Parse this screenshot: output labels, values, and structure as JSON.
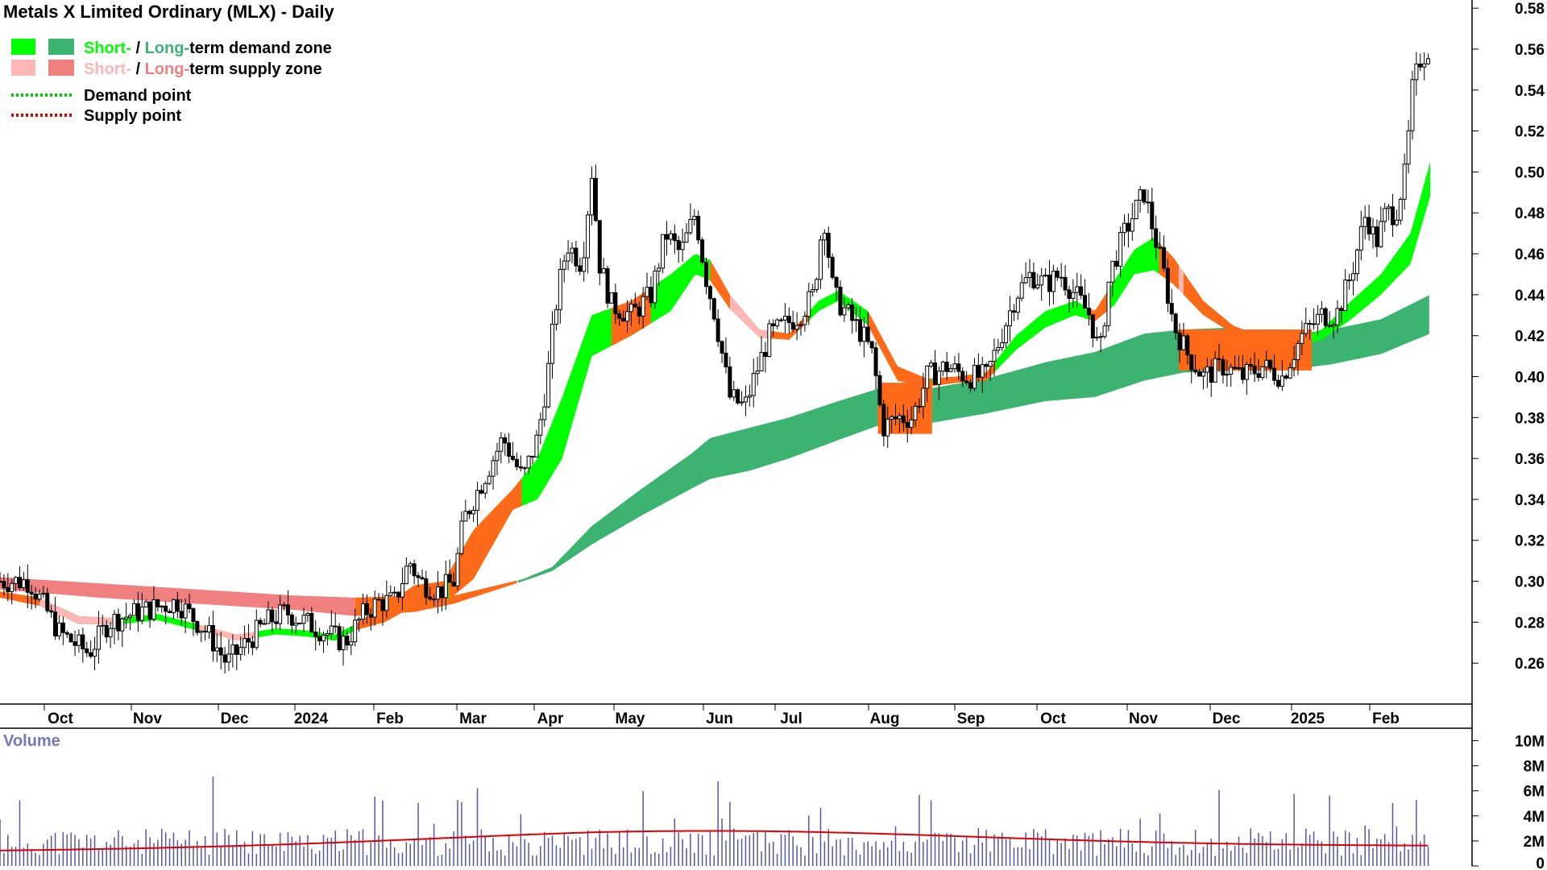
{
  "chart_data": {
    "type": "candlestick",
    "title": "Metals X Limited Ordinary (MLX) - Daily",
    "legend": [
      {
        "prefix": "Short-",
        "sep": " / ",
        "mid": "Long-",
        "suffix": "term demand zone",
        "short_color": "#00ff00",
        "long_color": "#3cb371"
      },
      {
        "prefix": "Short-",
        "sep": " / ",
        "mid": "Long-",
        "suffix": "term supply zone",
        "short_color": "#ffb6b6",
        "long_color": "#f08080"
      },
      {
        "label": "Demand point",
        "color": "#00cc00"
      },
      {
        "label": "Supply point",
        "color": "#dd0000"
      }
    ],
    "price_axis": {
      "min": 0.24,
      "max": 0.584,
      "ticks": [
        "0.26",
        "0.28",
        "0.30",
        "0.32",
        "0.34",
        "0.36",
        "0.38",
        "0.40",
        "0.42",
        "0.44",
        "0.46",
        "0.48",
        "0.50",
        "0.52",
        "0.54",
        "0.56",
        "0.58"
      ]
    },
    "x_ticks": [
      "Oct",
      "Nov",
      "Dec",
      "2024",
      "Feb",
      "Mar",
      "Apr",
      "May",
      "Jun",
      "Jul",
      "Aug",
      "Sep",
      "Oct",
      "Nov",
      "Dec",
      "2025",
      "Feb"
    ],
    "price_keypoints": [
      [
        0,
        0.3
      ],
      [
        30,
        0.3
      ],
      [
        60,
        0.275
      ],
      [
        90,
        0.265
      ],
      [
        110,
        0.28
      ],
      [
        140,
        0.285
      ],
      [
        180,
        0.29
      ],
      [
        210,
        0.275
      ],
      [
        230,
        0.26
      ],
      [
        250,
        0.27
      ],
      [
        270,
        0.28
      ],
      [
        290,
        0.285
      ],
      [
        310,
        0.28
      ],
      [
        330,
        0.275
      ],
      [
        350,
        0.27
      ],
      [
        370,
        0.285
      ],
      [
        385,
        0.29
      ],
      [
        400,
        0.29
      ],
      [
        415,
        0.31
      ],
      [
        425,
        0.3
      ],
      [
        445,
        0.295
      ],
      [
        460,
        0.3
      ],
      [
        470,
        0.33
      ],
      [
        490,
        0.35
      ],
      [
        510,
        0.37
      ],
      [
        530,
        0.35
      ],
      [
        545,
        0.37
      ],
      [
        555,
        0.4
      ],
      [
        565,
        0.44
      ],
      [
        575,
        0.465
      ],
      [
        590,
        0.455
      ],
      [
        600,
        0.5
      ],
      [
        608,
        0.455
      ],
      [
        620,
        0.435
      ],
      [
        640,
        0.43
      ],
      [
        660,
        0.44
      ],
      [
        675,
        0.47
      ],
      [
        690,
        0.46
      ],
      [
        705,
        0.48
      ],
      [
        715,
        0.45
      ],
      [
        725,
        0.43
      ],
      [
        740,
        0.39
      ],
      [
        755,
        0.385
      ],
      [
        765,
        0.4
      ],
      [
        780,
        0.42
      ],
      [
        795,
        0.425
      ],
      [
        810,
        0.43
      ],
      [
        825,
        0.44
      ],
      [
        835,
        0.48
      ],
      [
        845,
        0.44
      ],
      [
        860,
        0.43
      ],
      [
        875,
        0.42
      ],
      [
        885,
        0.41
      ],
      [
        895,
        0.375
      ],
      [
        910,
        0.38
      ],
      [
        925,
        0.38
      ],
      [
        940,
        0.4
      ],
      [
        960,
        0.405
      ],
      [
        980,
        0.4
      ],
      [
        1000,
        0.4
      ],
      [
        1015,
        0.42
      ],
      [
        1030,
        0.44
      ],
      [
        1045,
        0.45
      ],
      [
        1060,
        0.445
      ],
      [
        1075,
        0.45
      ],
      [
        1090,
        0.44
      ],
      [
        1105,
        0.43
      ],
      [
        1115,
        0.41
      ],
      [
        1125,
        0.45
      ],
      [
        1140,
        0.47
      ],
      [
        1150,
        0.48
      ],
      [
        1160,
        0.49
      ],
      [
        1170,
        0.47
      ],
      [
        1180,
        0.45
      ],
      [
        1190,
        0.425
      ],
      [
        1205,
        0.41
      ],
      [
        1220,
        0.4
      ],
      [
        1240,
        0.405
      ],
      [
        1260,
        0.4
      ],
      [
        1280,
        0.405
      ],
      [
        1300,
        0.4
      ],
      [
        1310,
        0.41
      ],
      [
        1320,
        0.42
      ],
      [
        1340,
        0.43
      ],
      [
        1355,
        0.43
      ],
      [
        1370,
        0.45
      ],
      [
        1385,
        0.48
      ],
      [
        1395,
        0.465
      ],
      [
        1405,
        0.48
      ],
      [
        1415,
        0.48
      ],
      [
        1425,
        0.5
      ],
      [
        1432,
        0.54
      ],
      [
        1440,
        0.555
      ],
      [
        1448,
        0.56
      ]
    ],
    "zones": {
      "long_term": {
        "color_demand": "#3cb371",
        "color_supply": "#f08080",
        "keypoints": [
          [
            0,
            0.302,
            0.296
          ],
          [
            100,
            0.299,
            0.292
          ],
          [
            200,
            0.296,
            0.289
          ],
          [
            300,
            0.293,
            0.286
          ],
          [
            360,
            0.292,
            0.283
          ],
          [
            420,
            0.293,
            0.285
          ],
          [
            460,
            0.293,
            0.289
          ],
          [
            530,
            0.301,
            0.3
          ],
          [
            560,
            0.307,
            0.305
          ],
          [
            600,
            0.327,
            0.318
          ],
          [
            650,
            0.345,
            0.332
          ],
          [
            700,
            0.362,
            0.345
          ],
          [
            720,
            0.37,
            0.35
          ],
          [
            760,
            0.375,
            0.354
          ],
          [
            800,
            0.38,
            0.36
          ],
          [
            850,
            0.388,
            0.369
          ],
          [
            890,
            0.394,
            0.376
          ],
          [
            940,
            0.394,
            0.377
          ],
          [
            1000,
            0.399,
            0.382
          ],
          [
            1060,
            0.407,
            0.388
          ],
          [
            1110,
            0.412,
            0.39
          ],
          [
            1160,
            0.421,
            0.398
          ],
          [
            1200,
            0.423,
            0.402
          ],
          [
            1250,
            0.424,
            0.403
          ],
          [
            1300,
            0.42,
            0.403
          ],
          [
            1350,
            0.423,
            0.406
          ],
          [
            1400,
            0.428,
            0.411
          ],
          [
            1450,
            0.44,
            0.421
          ]
        ],
        "supply_until": 360,
        "neutral_until": 525
      },
      "short_term": {
        "color_demand": "#00ff00",
        "color_supply": "#ffb6b6",
        "color_mixed": "#ff6a1a",
        "keypoints": [
          [
            0,
            0.295,
            0.292
          ],
          [
            40,
            0.292,
            0.288
          ],
          [
            80,
            0.283,
            0.279
          ],
          [
            120,
            0.282,
            0.279
          ],
          [
            160,
            0.284,
            0.281
          ],
          [
            200,
            0.279,
            0.276
          ],
          [
            240,
            0.274,
            0.271
          ],
          [
            280,
            0.277,
            0.274
          ],
          [
            310,
            0.276,
            0.273
          ],
          [
            340,
            0.274,
            0.271
          ],
          [
            360,
            0.279,
            0.276
          ],
          [
            390,
            0.288,
            0.28
          ],
          [
            420,
            0.298,
            0.288
          ],
          [
            450,
            0.3,
            0.289
          ],
          [
            480,
            0.325,
            0.301
          ],
          [
            520,
            0.345,
            0.335
          ],
          [
            545,
            0.36,
            0.34
          ],
          [
            570,
            0.39,
            0.36
          ],
          [
            600,
            0.43,
            0.41
          ],
          [
            640,
            0.437,
            0.42
          ],
          [
            680,
            0.45,
            0.432
          ],
          [
            705,
            0.46,
            0.45
          ],
          [
            720,
            0.457,
            0.447
          ],
          [
            740,
            0.44,
            0.433
          ],
          [
            770,
            0.423,
            0.419
          ],
          [
            800,
            0.421,
            0.418
          ],
          [
            830,
            0.437,
            0.432
          ],
          [
            850,
            0.442,
            0.437
          ],
          [
            880,
            0.432,
            0.425
          ],
          [
            910,
            0.405,
            0.398
          ],
          [
            940,
            0.399,
            0.395
          ],
          [
            970,
            0.4,
            0.397
          ],
          [
            1000,
            0.402,
            0.398
          ],
          [
            1030,
            0.42,
            0.413
          ],
          [
            1060,
            0.432,
            0.424
          ],
          [
            1090,
            0.437,
            0.43
          ],
          [
            1110,
            0.432,
            0.427
          ],
          [
            1130,
            0.447,
            0.435
          ],
          [
            1150,
            0.462,
            0.45
          ],
          [
            1170,
            0.468,
            0.452
          ],
          [
            1190,
            0.458,
            0.445
          ],
          [
            1220,
            0.437,
            0.43
          ],
          [
            1250,
            0.425,
            0.421
          ],
          [
            1280,
            0.419,
            0.416
          ],
          [
            1310,
            0.418,
            0.414
          ],
          [
            1340,
            0.423,
            0.418
          ],
          [
            1370,
            0.437,
            0.428
          ],
          [
            1400,
            0.45,
            0.44
          ],
          [
            1430,
            0.47,
            0.455
          ],
          [
            1450,
            0.505,
            0.488
          ]
        ],
        "orange_ranges": [
          [
            0,
            40
          ],
          [
            360,
            455
          ],
          [
            455,
            530
          ],
          [
            620,
            660
          ],
          [
            720,
            740
          ],
          [
            780,
            820
          ],
          [
            880,
            945
          ],
          [
            945,
            1010
          ],
          [
            1105,
            1125
          ],
          [
            1175,
            1195
          ],
          [
            1200,
            1330
          ]
        ],
        "pink_ranges": [
          [
            40,
            120
          ],
          [
            200,
            260
          ],
          [
            740,
            780
          ],
          [
            880,
            940
          ],
          [
            1195,
            1300
          ]
        ]
      }
    },
    "volume": {
      "label": "Volume",
      "ticks": [
        "0",
        "2M",
        "4M",
        "6M",
        "8M",
        "10M"
      ],
      "max": 11000000,
      "avg_line_color": "#dd0000"
    }
  }
}
